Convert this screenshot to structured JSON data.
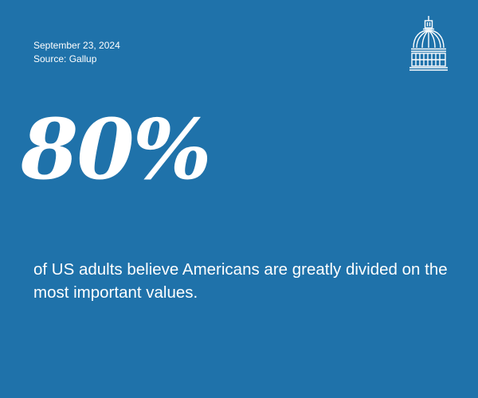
{
  "date": "September 23, 2024",
  "source": "Source: Gallup",
  "stat": "80%",
  "statement": "of US adults believe Americans are greatly divided on the most important values.",
  "logo": {
    "icon": "capitol-dome-icon"
  },
  "colors": {
    "background": "#1f72aa",
    "text": "#ffffff"
  }
}
